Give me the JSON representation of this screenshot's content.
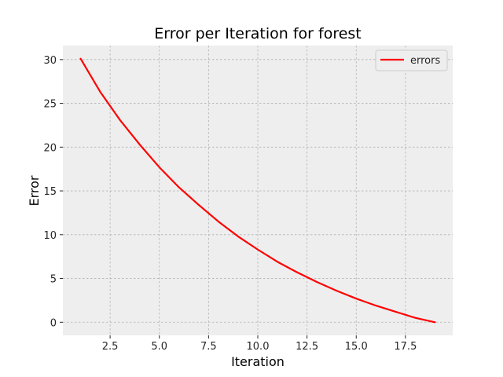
{
  "chart_data": {
    "type": "line",
    "title": "Error per Iteration for forest",
    "xlabel": "Iteration",
    "ylabel": "Error",
    "xlim": [
      0.1,
      19.9
    ],
    "ylim": [
      -1.5,
      31.6
    ],
    "xticks": [
      2.5,
      5.0,
      7.5,
      10.0,
      12.5,
      15.0,
      17.5
    ],
    "xtick_labels": [
      "2.5",
      "5.0",
      "7.5",
      "10.0",
      "12.5",
      "15.0",
      "17.5"
    ],
    "yticks": [
      0,
      5,
      10,
      15,
      20,
      25,
      30
    ],
    "ytick_labels": [
      "0",
      "5",
      "10",
      "15",
      "20",
      "25",
      "30"
    ],
    "grid": true,
    "legend_position": "top-right",
    "series": [
      {
        "name": "errors",
        "color": "#ff0000",
        "x": [
          1,
          2,
          3,
          4,
          5,
          6,
          7,
          8,
          9,
          10,
          11,
          12,
          13,
          14,
          15,
          16,
          17,
          18,
          19
        ],
        "y": [
          30.1,
          26.3,
          23.1,
          20.3,
          17.7,
          15.4,
          13.4,
          11.5,
          9.8,
          8.3,
          6.9,
          5.7,
          4.6,
          3.6,
          2.7,
          1.9,
          1.2,
          0.5,
          0.0
        ]
      }
    ]
  }
}
